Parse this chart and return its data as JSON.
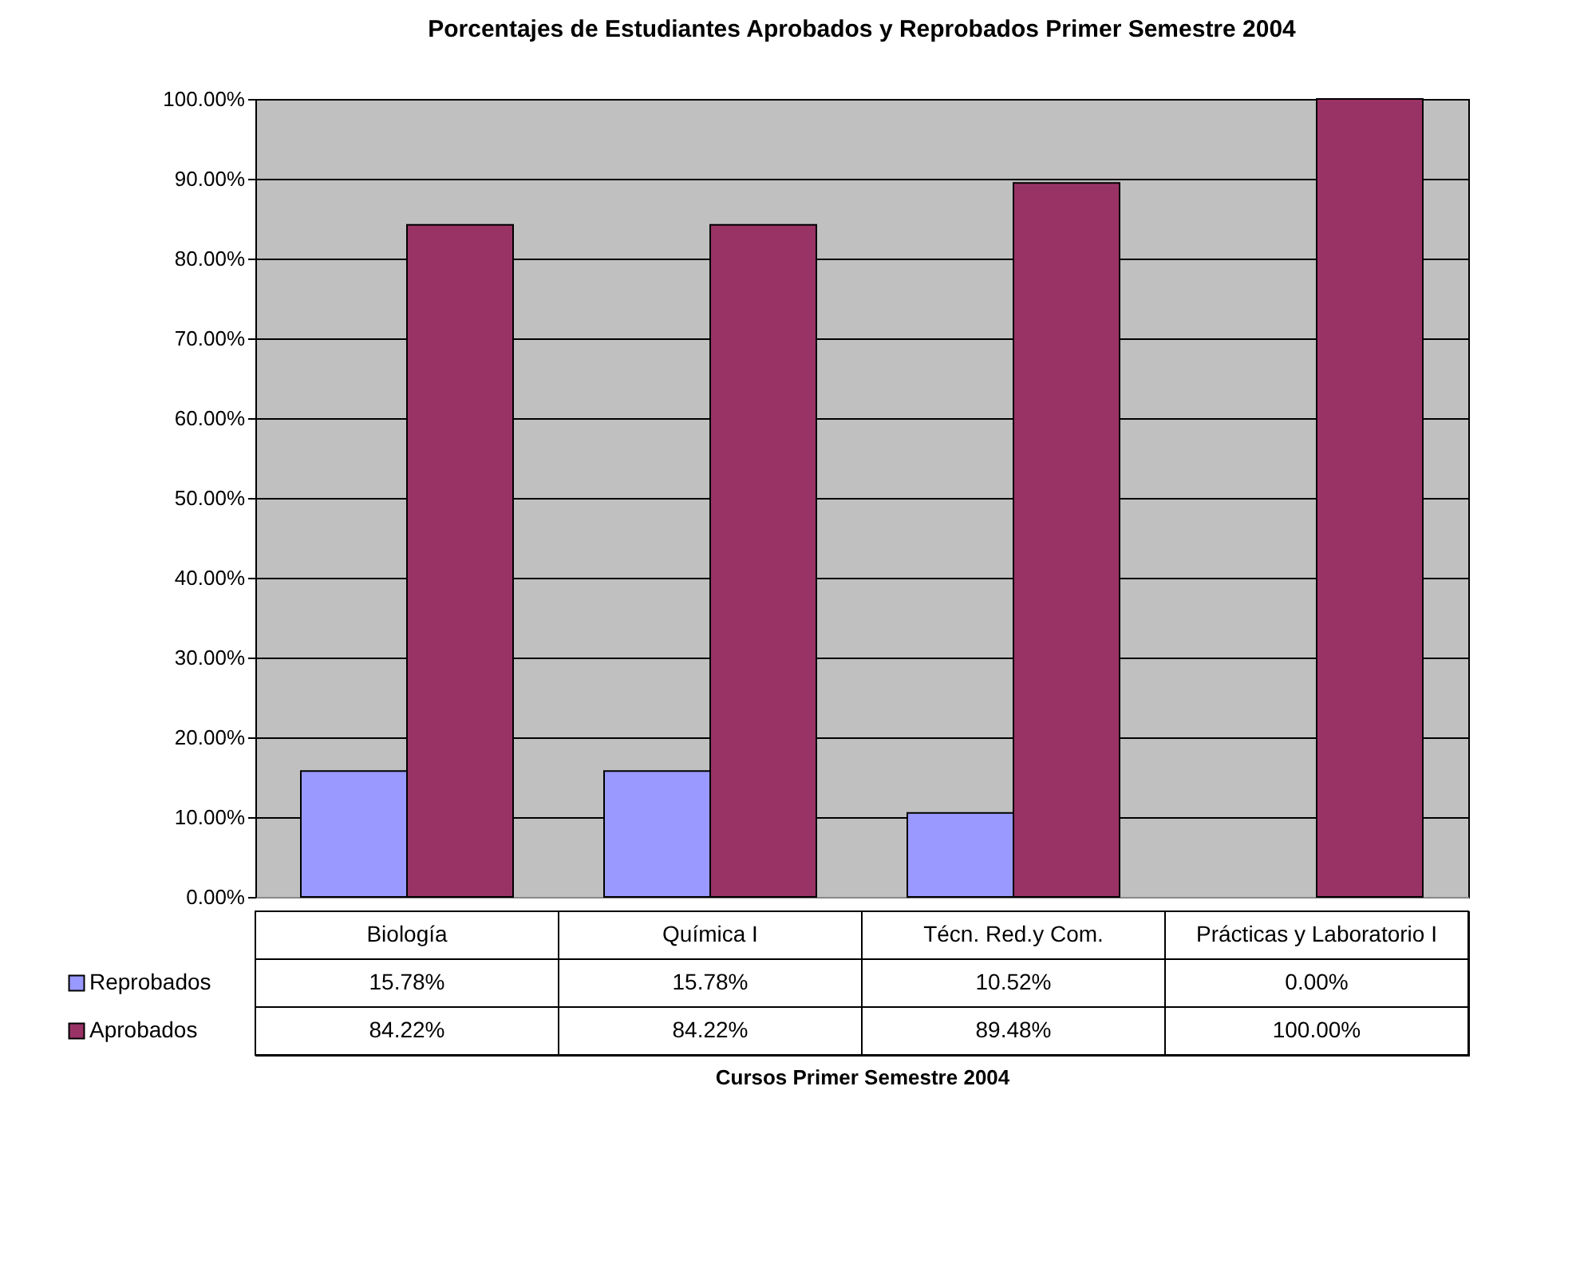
{
  "chart_data": {
    "type": "bar",
    "title": "Porcentajes de Estudiantes Aprobados y Reprobados Primer Semestre 2004",
    "annotations": [
      "Cursos Primer Semestre 2004"
    ],
    "categories": [
      "Biología",
      "Química I",
      "Técn. Red.y Com.",
      "Prácticas y Laboratorio I"
    ],
    "series": [
      {
        "name": "Reprobados",
        "color": "#9999ff",
        "values": [
          15.78,
          15.78,
          10.52,
          0.0
        ],
        "value_labels": [
          "15.78%",
          "15.78%",
          "10.52%",
          "0.00%"
        ]
      },
      {
        "name": "Aprobados",
        "color": "#993366",
        "values": [
          84.22,
          84.22,
          89.48,
          100.0
        ],
        "value_labels": [
          "84.22%",
          "84.22%",
          "89.48%",
          "100.00%"
        ]
      }
    ],
    "ylim": [
      0,
      100
    ],
    "yticks": [
      {
        "value": 0,
        "label": "0.00%"
      },
      {
        "value": 10,
        "label": "10.00%"
      },
      {
        "value": 20,
        "label": "20.00%"
      },
      {
        "value": 30,
        "label": "30.00%"
      },
      {
        "value": 40,
        "label": "40.00%"
      },
      {
        "value": 50,
        "label": "50.00%"
      },
      {
        "value": 60,
        "label": "60.00%"
      },
      {
        "value": 70,
        "label": "70.00%"
      },
      {
        "value": 80,
        "label": "80.00%"
      },
      {
        "value": 90,
        "label": "90.00%"
      },
      {
        "value": 100,
        "label": "100.00%"
      }
    ],
    "grid": "y",
    "legend": "bottom left"
  }
}
